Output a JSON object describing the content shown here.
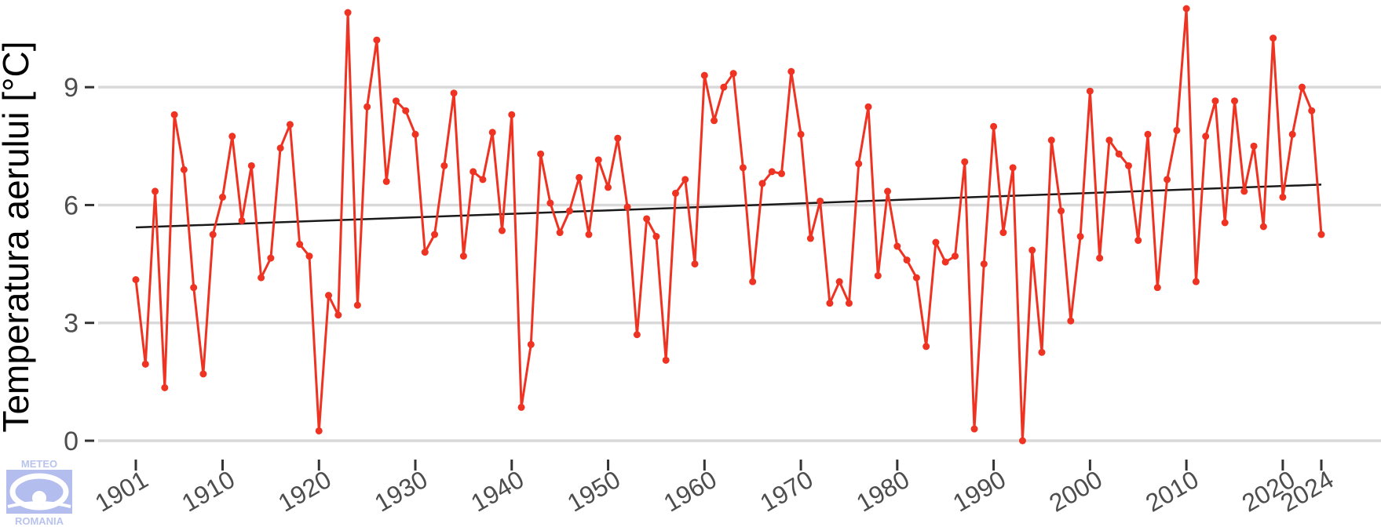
{
  "chart_data": {
    "type": "line",
    "ylabel": "Temperatura aerului [°C]",
    "xlabel": "",
    "title": "",
    "xlim": [
      1901,
      2024
    ],
    "ylim": [
      0,
      11
    ],
    "yticks": [
      0,
      3,
      6,
      9
    ],
    "xticks": [
      1901,
      1910,
      1920,
      1930,
      1940,
      1950,
      1960,
      1970,
      1980,
      1990,
      2000,
      2010,
      2020,
      2024
    ],
    "grid": "horizontal",
    "line_color": "#ee3322",
    "trend_color": "#1a1a1a",
    "x": [
      1901,
      1902,
      1903,
      1904,
      1905,
      1906,
      1907,
      1908,
      1909,
      1910,
      1911,
      1912,
      1913,
      1914,
      1915,
      1916,
      1917,
      1918,
      1919,
      1920,
      1921,
      1922,
      1923,
      1924,
      1925,
      1926,
      1927,
      1928,
      1929,
      1930,
      1931,
      1932,
      1933,
      1934,
      1935,
      1936,
      1937,
      1938,
      1939,
      1940,
      1941,
      1942,
      1943,
      1944,
      1945,
      1946,
      1947,
      1948,
      1949,
      1950,
      1951,
      1952,
      1953,
      1954,
      1955,
      1956,
      1957,
      1958,
      1959,
      1960,
      1961,
      1962,
      1963,
      1964,
      1965,
      1966,
      1967,
      1968,
      1969,
      1970,
      1971,
      1972,
      1973,
      1974,
      1975,
      1976,
      1977,
      1978,
      1979,
      1980,
      1981,
      1982,
      1983,
      1984,
      1985,
      1986,
      1987,
      1988,
      1989,
      1990,
      1991,
      1992,
      1993,
      1994,
      1995,
      1996,
      1997,
      1998,
      1999,
      2000,
      2001,
      2002,
      2003,
      2004,
      2005,
      2006,
      2007,
      2008,
      2009,
      2010,
      2011,
      2012,
      2013,
      2014,
      2015,
      2016,
      2017,
      2018,
      2019,
      2020,
      2021,
      2022,
      2023,
      2024
    ],
    "series": [
      {
        "values": [
          4.1,
          1.95,
          6.35,
          1.35,
          8.3,
          6.9,
          3.9,
          1.7,
          5.25,
          6.2,
          7.75,
          5.6,
          7.0,
          4.15,
          4.65,
          7.45,
          8.05,
          5.0,
          4.7,
          0.25,
          3.7,
          3.2,
          10.9,
          3.45,
          8.5,
          10.2,
          6.6,
          8.65,
          8.4,
          7.8,
          4.8,
          5.25,
          7.0,
          8.85,
          4.7,
          6.85,
          6.65,
          7.85,
          5.35,
          8.3,
          0.85,
          2.45,
          7.3,
          6.05,
          5.3,
          5.85,
          6.7,
          5.25,
          7.15,
          6.45,
          7.7,
          5.95,
          2.7,
          5.65,
          5.2,
          2.05,
          6.3,
          6.65,
          4.5,
          9.3,
          8.15,
          9.0,
          9.35,
          6.95,
          4.05,
          6.55,
          6.85,
          6.8,
          9.4,
          7.8,
          5.15,
          6.1,
          3.5,
          4.05,
          3.5,
          7.05,
          8.5,
          4.2,
          6.35,
          4.95,
          4.6,
          4.15,
          2.4,
          5.05,
          4.55,
          4.7,
          7.1,
          0.3,
          4.5,
          8.0,
          5.3,
          6.95,
          0.0,
          4.85,
          2.25,
          7.65,
          5.85,
          3.05,
          5.2,
          8.9,
          4.65,
          7.65,
          7.3,
          7.0,
          5.1,
          7.8,
          3.9,
          6.65,
          7.9,
          11.0,
          4.05,
          7.75,
          8.65,
          5.55,
          8.65,
          6.35,
          7.5,
          5.45,
          10.25,
          6.2,
          7.8,
          9.0,
          8.4,
          5.25
        ]
      }
    ],
    "trend": {
      "x": [
        1901,
        2024
      ],
      "y": [
        5.43,
        6.52
      ]
    }
  },
  "logo": {
    "top_text": "METEO",
    "bottom_text": "ROMANIA"
  }
}
